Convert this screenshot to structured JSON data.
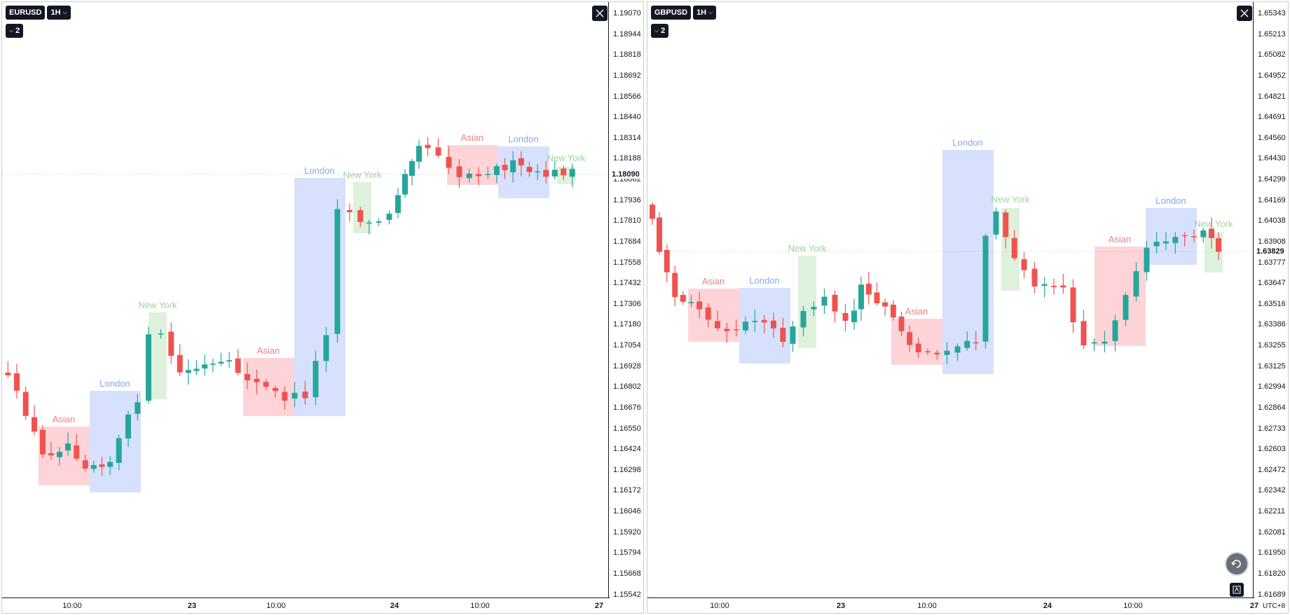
{
  "panes": [
    {
      "symbol": "EURUSD",
      "interval": "1H",
      "indicator_count": "2",
      "price_ticks": [
        "1.19070",
        "1.18944",
        "1.18818",
        "1.18692",
        "1.18566",
        "1.18440",
        "1.18314",
        "1.18188",
        "1.18062",
        "1.17936",
        "1.17810",
        "1.17684",
        "1.17558",
        "1.17432",
        "1.17306",
        "1.17180",
        "1.17054",
        "1.16928",
        "1.16802",
        "1.16676",
        "1.16550",
        "1.16424",
        "1.16298",
        "1.16172",
        "1.16046",
        "1.15920",
        "1.15794",
        "1.15668",
        "1.15542"
      ],
      "last_price": "1.18090",
      "time_ticks": [
        {
          "label": "10:00",
          "bold": false
        },
        {
          "label": "23",
          "bold": true
        },
        {
          "label": "10:00",
          "bold": false
        },
        {
          "label": "24",
          "bold": true
        },
        {
          "label": "10:00",
          "bold": false
        },
        {
          "label": "27",
          "bold": true
        }
      ]
    },
    {
      "symbol": "GBPUSD",
      "interval": "1H",
      "indicator_count": "2",
      "price_ticks": [
        "1.65343",
        "1.65213",
        "1.65082",
        "1.64952",
        "1.64821",
        "1.64691",
        "1.64560",
        "1.64430",
        "1.64299",
        "1.64169",
        "1.64038",
        "1.63908",
        "1.63777",
        "1.63647",
        "1.63516",
        "1.63386",
        "1.63255",
        "1.63125",
        "1.62994",
        "1.62864",
        "1.62733",
        "1.62603",
        "1.62472",
        "1.62342",
        "1.62211",
        "1.62081",
        "1.61950",
        "1.61820",
        "1.61689"
      ],
      "last_price": "1.63829",
      "time_ticks": [
        {
          "label": "10:00",
          "bold": false
        },
        {
          "label": "23",
          "bold": true
        },
        {
          "label": "10:00",
          "bold": false
        },
        {
          "label": "24",
          "bold": true
        },
        {
          "label": "10:00",
          "bold": false
        },
        {
          "label": "27",
          "bold": true
        }
      ],
      "timezone": "UTC+8"
    }
  ],
  "sessions": {
    "asian": "Asian",
    "london": "London",
    "newyork": "New York"
  },
  "colors": {
    "up": "#26a69a",
    "down": "#ef5350",
    "asian_fill": "#ffcdd2",
    "london_fill": "#d0dcfd",
    "newyork_fill": "#d8efd6",
    "asian_text": "#f08080",
    "london_text": "#86a8f2",
    "newyork_text": "#9ed49a"
  },
  "icons": {
    "close": "close-icon",
    "replay": "replay-icon",
    "autofit": "auto-scale-icon"
  }
}
